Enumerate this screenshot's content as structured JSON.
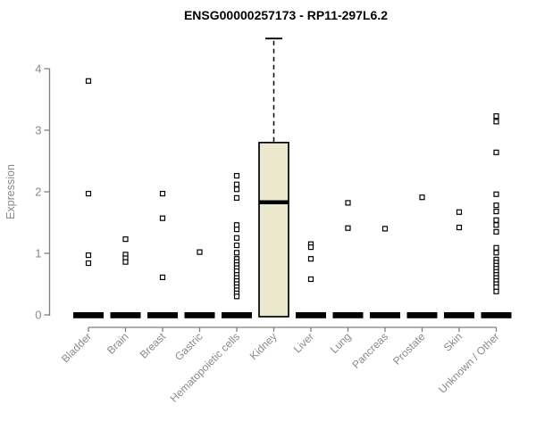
{
  "chart_data": {
    "type": "boxplot",
    "title": "ENSG00000257173 - RP11-297L6.2",
    "ylabel": "Expression",
    "xlabel": "",
    "ylim": [
      0,
      4.6
    ],
    "yticks": [
      0,
      1,
      2,
      3,
      4
    ],
    "grid": false,
    "legend": false,
    "marker": "open-square",
    "colors": {
      "box_fill": "#ece8cd",
      "box_stroke": "#000000",
      "axis": "#808080",
      "tick_label": "#8a8a8a",
      "title": "#000000",
      "background": "#ffffff"
    },
    "categories": [
      "Bladder",
      "Brain",
      "Breast",
      "Gastric",
      "Hematopoietic cells",
      "Kidney",
      "Liver",
      "Lung",
      "Pancreas",
      "Prostate",
      "Skin",
      "Unknown / Other"
    ],
    "boxes": [
      {
        "category": "Bladder",
        "whisker_low": 0,
        "q1": 0,
        "median": 0,
        "q3": 0,
        "whisker_high": 0,
        "outliers": [
          3.8,
          1.97,
          0.97,
          0.84
        ]
      },
      {
        "category": "Brain",
        "whisker_low": 0,
        "q1": 0,
        "median": 0,
        "q3": 0,
        "whisker_high": 0,
        "outliers": [
          1.23,
          0.98,
          0.92,
          0.86
        ]
      },
      {
        "category": "Breast",
        "whisker_low": 0,
        "q1": 0,
        "median": 0,
        "q3": 0,
        "whisker_high": 0,
        "outliers": [
          1.97,
          1.57,
          0.61
        ]
      },
      {
        "category": "Gastric",
        "whisker_low": 0,
        "q1": 0,
        "median": 0,
        "q3": 0,
        "whisker_high": 0,
        "outliers": [
          1.02
        ]
      },
      {
        "category": "Hematopoietic cells",
        "whisker_low": 0,
        "q1": 0,
        "median": 0,
        "q3": 0,
        "whisker_high": 0,
        "outliers": [
          2.26,
          2.12,
          2.04,
          1.9,
          1.46,
          1.39,
          1.25,
          1.13,
          1.01,
          0.91,
          0.86,
          0.81,
          0.76,
          0.71,
          0.65,
          0.6,
          0.55,
          0.5,
          0.45,
          0.4,
          0.35,
          0.3
        ]
      },
      {
        "category": "Kidney",
        "whisker_low": 0,
        "q1": 0,
        "median": 1.83,
        "q3": 2.8,
        "whisker_high": 4.49,
        "outliers": []
      },
      {
        "category": "Liver",
        "whisker_low": 0,
        "q1": 0,
        "median": 0,
        "q3": 0,
        "whisker_high": 0,
        "outliers": [
          1.15,
          1.1,
          0.91,
          0.58
        ]
      },
      {
        "category": "Lung",
        "whisker_low": 0,
        "q1": 0,
        "median": 0,
        "q3": 0,
        "whisker_high": 0,
        "outliers": [
          1.82,
          1.41
        ]
      },
      {
        "category": "Pancreas",
        "whisker_low": 0,
        "q1": 0,
        "median": 0,
        "q3": 0,
        "whisker_high": 0,
        "outliers": [
          1.4
        ]
      },
      {
        "category": "Prostate",
        "whisker_low": 0,
        "q1": 0,
        "median": 0,
        "q3": 0,
        "whisker_high": 0,
        "outliers": [
          1.91
        ]
      },
      {
        "category": "Skin",
        "whisker_low": 0,
        "q1": 0,
        "median": 0,
        "q3": 0,
        "whisker_high": 0,
        "outliers": [
          1.67,
          1.42
        ]
      },
      {
        "category": "Unknown / Other",
        "whisker_low": 0,
        "q1": 0,
        "median": 0,
        "q3": 0,
        "whisker_high": 0,
        "outliers": [
          3.23,
          3.14,
          2.64,
          1.96,
          1.78,
          1.68,
          1.54,
          1.46,
          1.35,
          1.09,
          1.01,
          0.9,
          0.85,
          0.8,
          0.75,
          0.7,
          0.65,
          0.6,
          0.55,
          0.5,
          0.45,
          0.38
        ]
      }
    ]
  }
}
